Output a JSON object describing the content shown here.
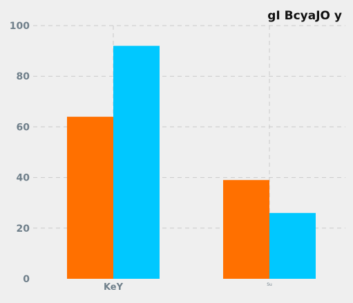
{
  "chart_data": {
    "type": "bar",
    "title": "gI BcyaJO y",
    "xlabel": "",
    "ylabel": "",
    "categories": [
      "KeY",
      "Su"
    ],
    "series": [
      {
        "values": [
          64,
          39
        ],
        "color": "#ff7000"
      },
      {
        "values": [
          92,
          26
        ],
        "color": "#00c8ff"
      }
    ],
    "ylim": [
      0,
      100
    ],
    "yticks": [
      0,
      20,
      40,
      60,
      80,
      100
    ],
    "grid": true,
    "legend": "none"
  }
}
